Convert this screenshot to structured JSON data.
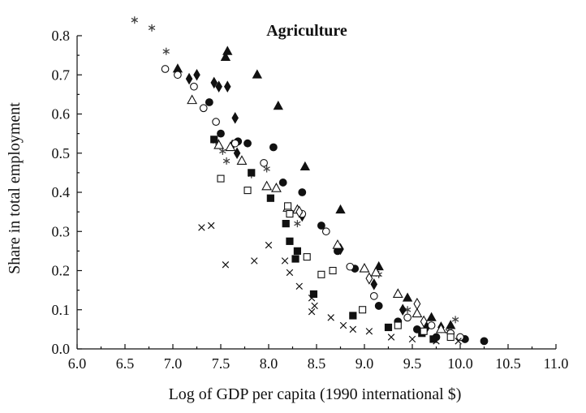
{
  "chart_data": {
    "type": "scatter",
    "title": "Agriculture",
    "xlabel": "Log of GDP per capita (1990 international $)",
    "ylabel": "Share in total employment",
    "xlim": [
      6.0,
      11.0
    ],
    "ylim": [
      0.0,
      0.8
    ],
    "x_ticks": [
      "6.0",
      "6.5",
      "7.0",
      "7.5",
      "8.0",
      "8.5",
      "9.0",
      "9.5",
      "10.0",
      "10.5",
      "11.0"
    ],
    "y_ticks": [
      "0.0",
      "0.1",
      "0.2",
      "0.3",
      "0.4",
      "0.5",
      "0.6",
      "0.7",
      "0.8"
    ],
    "grid": false,
    "legend": "none",
    "series": [
      {
        "marker": "asterisk",
        "points": [
          [
            6.6,
            0.84
          ],
          [
            6.78,
            0.82
          ],
          [
            6.93,
            0.76
          ],
          [
            7.45,
            0.53
          ],
          [
            7.52,
            0.505
          ],
          [
            7.56,
            0.48
          ],
          [
            7.82,
            0.445
          ],
          [
            7.98,
            0.46
          ],
          [
            8.3,
            0.32
          ],
          [
            9.15,
            0.19
          ],
          [
            9.45,
            0.1
          ],
          [
            9.95,
            0.075
          ],
          [
            9.88,
            0.045
          ]
        ]
      },
      {
        "marker": "triangle-filled",
        "points": [
          [
            7.05,
            0.715
          ],
          [
            7.55,
            0.745
          ],
          [
            7.57,
            0.76
          ],
          [
            7.88,
            0.7
          ],
          [
            8.1,
            0.62
          ],
          [
            8.38,
            0.465
          ],
          [
            8.75,
            0.355
          ],
          [
            9.15,
            0.21
          ],
          [
            9.45,
            0.13
          ],
          [
            9.7,
            0.08
          ],
          [
            9.9,
            0.06
          ]
        ]
      },
      {
        "marker": "diamond-filled",
        "points": [
          [
            7.17,
            0.69
          ],
          [
            7.25,
            0.7
          ],
          [
            7.43,
            0.68
          ],
          [
            7.48,
            0.67
          ],
          [
            7.57,
            0.67
          ],
          [
            7.65,
            0.59
          ],
          [
            7.62,
            0.52
          ],
          [
            7.67,
            0.5
          ],
          [
            8.35,
            0.34
          ],
          [
            8.75,
            0.255
          ],
          [
            9.1,
            0.165
          ],
          [
            9.4,
            0.1
          ],
          [
            9.65,
            0.055
          ],
          [
            9.8,
            0.055
          ]
        ]
      },
      {
        "marker": "circle-filled",
        "points": [
          [
            7.38,
            0.63
          ],
          [
            7.5,
            0.55
          ],
          [
            7.68,
            0.53
          ],
          [
            7.78,
            0.525
          ],
          [
            8.05,
            0.515
          ],
          [
            8.15,
            0.425
          ],
          [
            8.35,
            0.4
          ],
          [
            8.55,
            0.315
          ],
          [
            8.72,
            0.25
          ],
          [
            8.9,
            0.205
          ],
          [
            9.15,
            0.11
          ],
          [
            9.35,
            0.07
          ],
          [
            9.55,
            0.05
          ],
          [
            9.75,
            0.03
          ],
          [
            10.05,
            0.025
          ],
          [
            10.25,
            0.02
          ]
        ]
      },
      {
        "marker": "circle-open",
        "points": [
          [
            6.92,
            0.715
          ],
          [
            7.05,
            0.7
          ],
          [
            7.22,
            0.67
          ],
          [
            7.32,
            0.615
          ],
          [
            7.45,
            0.58
          ],
          [
            7.65,
            0.525
          ],
          [
            7.95,
            0.475
          ],
          [
            8.35,
            0.345
          ],
          [
            8.6,
            0.3
          ],
          [
            8.85,
            0.21
          ],
          [
            9.1,
            0.135
          ],
          [
            9.45,
            0.08
          ],
          [
            9.7,
            0.06
          ],
          [
            9.9,
            0.04
          ],
          [
            10.0,
            0.03
          ]
        ]
      },
      {
        "marker": "triangle-open",
        "points": [
          [
            7.2,
            0.635
          ],
          [
            7.48,
            0.52
          ],
          [
            7.6,
            0.515
          ],
          [
            7.72,
            0.48
          ],
          [
            7.98,
            0.415
          ],
          [
            8.08,
            0.41
          ],
          [
            8.2,
            0.36
          ],
          [
            8.3,
            0.355
          ],
          [
            8.72,
            0.265
          ],
          [
            9.0,
            0.205
          ],
          [
            9.12,
            0.195
          ],
          [
            9.35,
            0.14
          ],
          [
            9.55,
            0.09
          ],
          [
            9.8,
            0.05
          ]
        ]
      },
      {
        "marker": "diamond-open",
        "points": [
          [
            8.32,
            0.35
          ],
          [
            9.05,
            0.18
          ],
          [
            9.55,
            0.115
          ],
          [
            9.62,
            0.07
          ]
        ]
      },
      {
        "marker": "square-filled",
        "points": [
          [
            7.43,
            0.535
          ],
          [
            7.82,
            0.45
          ],
          [
            8.02,
            0.385
          ],
          [
            8.18,
            0.32
          ],
          [
            8.22,
            0.275
          ],
          [
            8.28,
            0.23
          ],
          [
            8.3,
            0.25
          ],
          [
            8.47,
            0.14
          ],
          [
            8.88,
            0.085
          ],
          [
            9.25,
            0.055
          ],
          [
            9.6,
            0.04
          ],
          [
            9.72,
            0.025
          ]
        ]
      },
      {
        "marker": "square-open",
        "points": [
          [
            7.5,
            0.435
          ],
          [
            7.78,
            0.405
          ],
          [
            8.2,
            0.365
          ],
          [
            8.22,
            0.345
          ],
          [
            8.4,
            0.235
          ],
          [
            8.55,
            0.19
          ],
          [
            8.67,
            0.2
          ],
          [
            8.98,
            0.1
          ],
          [
            9.35,
            0.06
          ],
          [
            9.62,
            0.045
          ],
          [
            9.9,
            0.03
          ]
        ]
      },
      {
        "marker": "cross",
        "points": [
          [
            7.3,
            0.31
          ],
          [
            7.4,
            0.315
          ],
          [
            7.55,
            0.215
          ],
          [
            7.85,
            0.225
          ],
          [
            8.0,
            0.265
          ],
          [
            8.17,
            0.225
          ],
          [
            8.22,
            0.195
          ],
          [
            8.32,
            0.16
          ],
          [
            8.45,
            0.13
          ],
          [
            8.45,
            0.095
          ],
          [
            8.48,
            0.11
          ],
          [
            8.65,
            0.08
          ],
          [
            8.78,
            0.06
          ],
          [
            8.88,
            0.05
          ],
          [
            9.05,
            0.045
          ],
          [
            9.28,
            0.03
          ],
          [
            9.5,
            0.025
          ],
          [
            9.75,
            0.02
          ],
          [
            9.98,
            0.02
          ]
        ]
      }
    ]
  }
}
